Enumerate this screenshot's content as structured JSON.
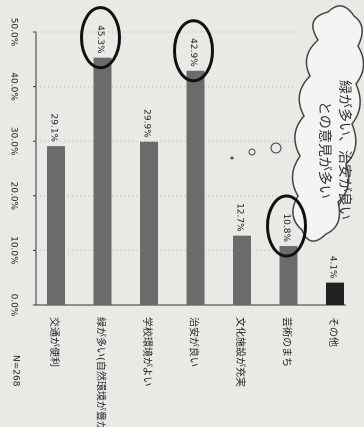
{
  "chart_data": {
    "type": "bar",
    "categories": [
      "交通が便利",
      "緑が多い(自然環境が豊か)",
      "学校環境がよい",
      "治安が良い",
      "文化施設が充実",
      "芸術のまち",
      "その他"
    ],
    "values": [
      29.1,
      45.3,
      29.9,
      42.9,
      12.7,
      10.8,
      4.1
    ],
    "value_labels": [
      "29.1%",
      "45.3%",
      "29.9%",
      "42.9%",
      "12.7%",
      "10.8%",
      "4.1%"
    ],
    "colors": [
      "#6b6b6b",
      "#6b6b6b",
      "#6b6b6b",
      "#6b6b6b",
      "#6b6b6b",
      "#6b6b6b",
      "#222222"
    ],
    "ylim": [
      0,
      50
    ],
    "yticks": [
      {
        "value": 0,
        "label": "0.0%"
      },
      {
        "value": 10,
        "label": "10.0%"
      },
      {
        "value": 20,
        "label": "20.0%"
      },
      {
        "value": 30,
        "label": "30.0%"
      },
      {
        "value": 40,
        "label": "40.0%"
      },
      {
        "value": 50,
        "label": "50.0%"
      }
    ],
    "grid": true,
    "highlighted": [
      1,
      3,
      5
    ],
    "sample_size": "N=268",
    "annotation": [
      "緑が多い、治安が良い",
      "との意見が多い"
    ]
  }
}
